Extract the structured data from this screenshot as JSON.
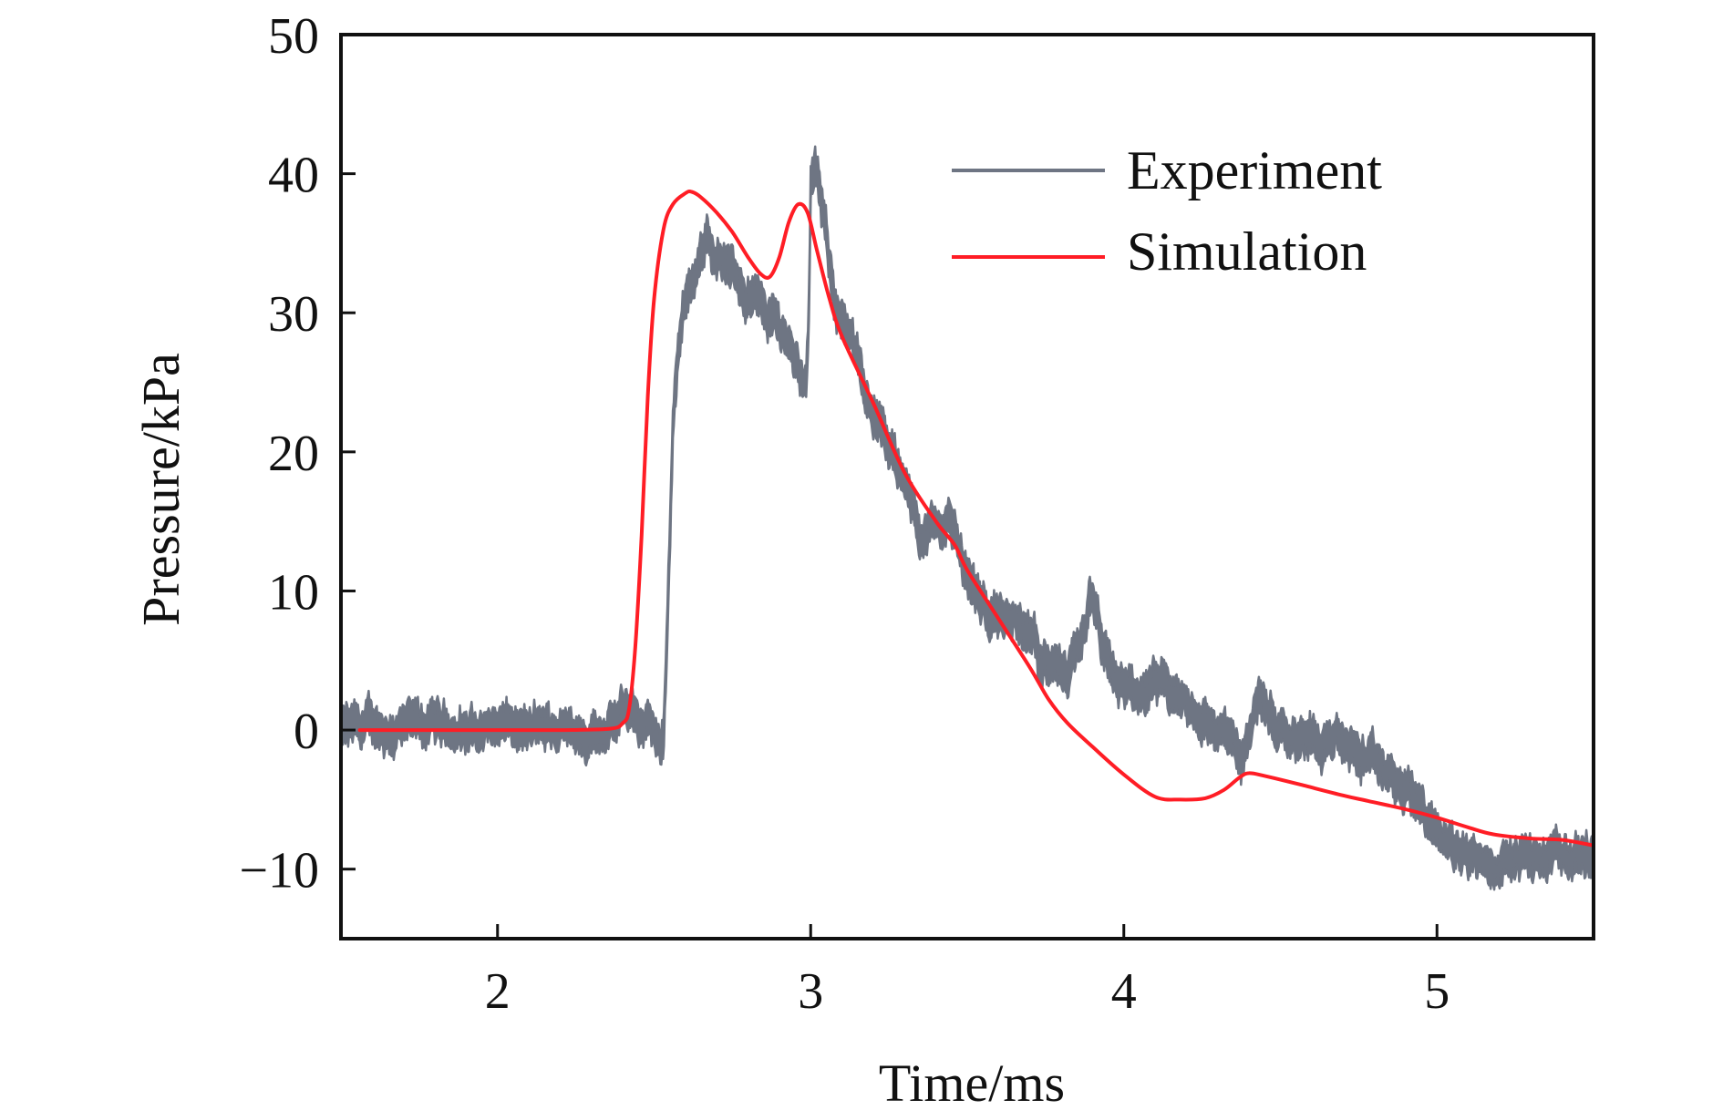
{
  "chart_data": {
    "type": "line",
    "title": "",
    "xlabel": "Time/ms",
    "ylabel": "Pressure/kPa",
    "xlim": [
      1.5,
      5.5
    ],
    "ylim": [
      -15,
      50
    ],
    "grid": false,
    "legend_position": "top-right",
    "x_ticks": [
      {
        "value": 2,
        "label": "2"
      },
      {
        "value": 3,
        "label": "3"
      },
      {
        "value": 4,
        "label": "4"
      },
      {
        "value": 5,
        "label": "5"
      }
    ],
    "y_ticks": [
      {
        "value": -10,
        "label": "−10"
      },
      {
        "value": 0,
        "label": "0"
      },
      {
        "value": 10,
        "label": "10"
      },
      {
        "value": 20,
        "label": "20"
      },
      {
        "value": 30,
        "label": "30"
      },
      {
        "value": 40,
        "label": "40"
      },
      {
        "value": 50,
        "label": "50"
      }
    ],
    "series": [
      {
        "name": "Experiment",
        "color": "#6e7583",
        "style": "noisy-band",
        "x": [
          1.5,
          1.6,
          1.7,
          1.8,
          1.9,
          2.0,
          2.1,
          2.2,
          2.3,
          2.38,
          2.42,
          2.46,
          2.5,
          2.53,
          2.54,
          2.56,
          2.58,
          2.6,
          2.63,
          2.67,
          2.72,
          2.78,
          2.84,
          2.89,
          2.93,
          2.97,
          2.985,
          2.995,
          3.0,
          3.02,
          3.05,
          3.08,
          3.12,
          3.17,
          3.22,
          3.27,
          3.32,
          3.36,
          3.4,
          3.44,
          3.47,
          3.5,
          3.56,
          3.62,
          3.7,
          3.76,
          3.82,
          3.86,
          3.89,
          3.92,
          3.96,
          4.02,
          4.1,
          4.18,
          4.26,
          4.33,
          4.38,
          4.41,
          4.43,
          4.46,
          4.52,
          4.6,
          4.66,
          4.72,
          4.8,
          4.88,
          4.94,
          4.98,
          5.02,
          5.1,
          5.18,
          5.26,
          5.34,
          5.42,
          5.5
        ],
        "y": [
          0.0,
          0.2,
          0.1,
          0.3,
          0.0,
          0.2,
          -0.1,
          0.2,
          0.0,
          0.5,
          1.5,
          0.5,
          -0.5,
          -1.5,
          6,
          22,
          28,
          31.5,
          33,
          35,
          34,
          32,
          30.5,
          29.5,
          28,
          26,
          24.5,
          30,
          40,
          39.5,
          35,
          31,
          28,
          25,
          22,
          19,
          16,
          14,
          14.5,
          15.2,
          13.5,
          11,
          9,
          8,
          6.5,
          5,
          3.5,
          5.5,
          9.5,
          7,
          3.5,
          2.7,
          3.0,
          2.0,
          0.8,
          -0.6,
          -2.5,
          0.5,
          3.0,
          1.0,
          0.2,
          -0.3,
          -0.5,
          -1.2,
          -2.6,
          -4.0,
          -5.2,
          -6.8,
          -7.8,
          -9.0,
          -9.6,
          -9.4,
          -9.2,
          -9.0,
          -9.0
        ],
        "noise_amplitude_kpa": 1.1
      },
      {
        "name": "Simulation",
        "color": "#ff1d25",
        "style": "line",
        "x": [
          1.56,
          1.8,
          2.0,
          2.2,
          2.36,
          2.4,
          2.42,
          2.44,
          2.46,
          2.48,
          2.5,
          2.53,
          2.56,
          2.6,
          2.62,
          2.65,
          2.7,
          2.75,
          2.8,
          2.84,
          2.87,
          2.9,
          2.93,
          2.96,
          2.99,
          3.02,
          3.06,
          3.1,
          3.2,
          3.3,
          3.4,
          3.46,
          3.5,
          3.6,
          3.7,
          3.76,
          3.82,
          3.9,
          4.0,
          4.1,
          4.18,
          4.26,
          4.32,
          4.37,
          4.4,
          4.45,
          4.56,
          4.7,
          4.78,
          4.9,
          5.0,
          5.1,
          5.18,
          5.3,
          5.4,
          5.5
        ],
        "y": [
          0.0,
          0.0,
          0.0,
          0.0,
          0.1,
          0.5,
          1.5,
          6,
          14,
          24,
          31,
          36,
          37.8,
          38.6,
          38.7,
          38.3,
          37.2,
          35.8,
          34,
          32.8,
          32.6,
          34,
          36.5,
          37.8,
          37.2,
          34.5,
          31,
          28.3,
          23.5,
          18.5,
          15,
          13.3,
          11.5,
          8,
          4.5,
          2.2,
          0.5,
          -1.2,
          -3.2,
          -4.8,
          -5.0,
          -4.9,
          -4.3,
          -3.4,
          -3.1,
          -3.3,
          -3.9,
          -4.7,
          -5.1,
          -5.7,
          -6.3,
          -7.0,
          -7.5,
          -7.8,
          -7.9,
          -8.3
        ]
      }
    ]
  }
}
